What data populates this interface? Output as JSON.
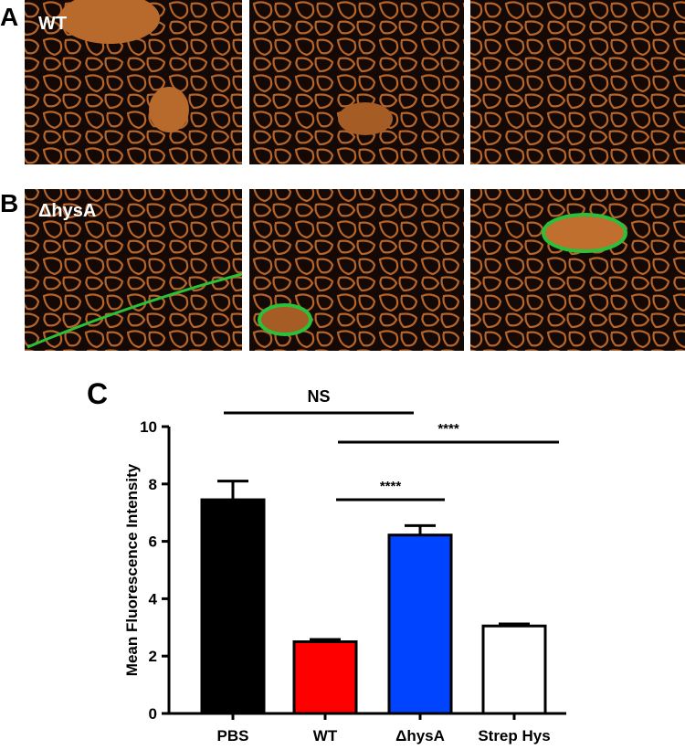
{
  "figure": {
    "panel_labels": [
      "A",
      "B",
      "C"
    ],
    "image_labels": [
      "WT",
      "ΔhysA"
    ]
  },
  "chart_data": {
    "type": "bar",
    "ylabel": "Mean Fluorescence Intensity",
    "categories": [
      "PBS",
      "WT",
      "ΔhysA",
      "Strep Hys"
    ],
    "values": [
      7.45,
      2.5,
      6.22,
      3.05
    ],
    "errors": [
      0.65,
      0.08,
      0.33,
      0.07
    ],
    "colors": [
      "#000000",
      "#ff0000",
      "#0044ff",
      "#ffffff"
    ],
    "ylim": [
      0,
      10
    ],
    "yticks": [
      0,
      2,
      4,
      6,
      8,
      10
    ],
    "annotations": [
      "NS",
      "****",
      "****"
    ]
  }
}
